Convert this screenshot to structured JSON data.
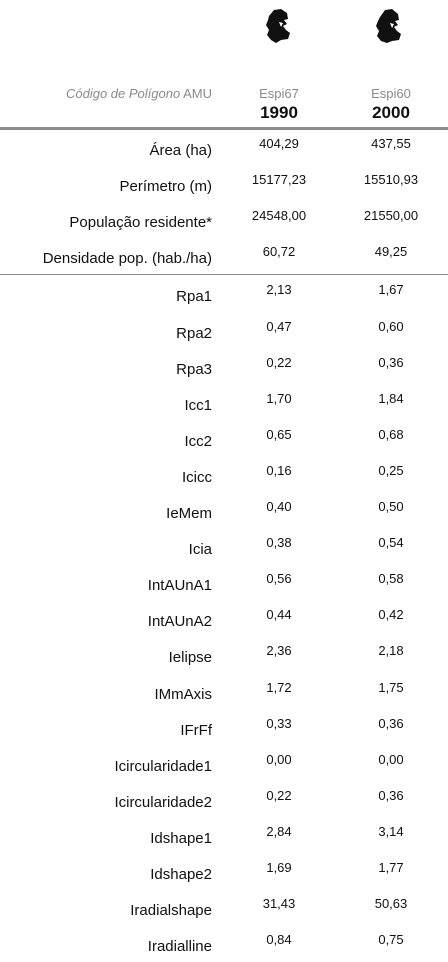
{
  "header": {
    "code_label_italic": "Código de Polígono",
    "code_label_plain": "AMU",
    "columns": [
      {
        "code": "Espi67",
        "year": "1990",
        "shape_icon": "parish-shape-icon"
      },
      {
        "code": "Espi60",
        "year": "2000",
        "shape_icon": "parish-shape-icon"
      }
    ]
  },
  "rows": [
    {
      "label": "Área (ha)",
      "v1": "404,29",
      "v2": "437,55"
    },
    {
      "label": "Perímetro (m)",
      "v1": "15177,23",
      "v2": "15510,93"
    },
    {
      "label": "População residente*",
      "v1": "24548,00",
      "v2": "21550,00"
    },
    {
      "label": "Densidade pop. (hab./ha)",
      "v1": "60,72",
      "v2": "49,25"
    },
    {
      "label": "Rpa1",
      "v1": "2,13",
      "v2": "1,67"
    },
    {
      "label": "Rpa2",
      "v1": "0,47",
      "v2": "0,60"
    },
    {
      "label": "Rpa3",
      "v1": "0,22",
      "v2": "0,36"
    },
    {
      "label": "Icc1",
      "v1": "1,70",
      "v2": "1,84"
    },
    {
      "label": "Icc2",
      "v1": "0,65",
      "v2": "0,68"
    },
    {
      "label": "Icicc",
      "v1": "0,16",
      "v2": "0,25"
    },
    {
      "label": "IeMem",
      "v1": "0,40",
      "v2": "0,50"
    },
    {
      "label": "Icia",
      "v1": "0,38",
      "v2": "0,54"
    },
    {
      "label": "IntAUnA1",
      "v1": "0,56",
      "v2": "0,58"
    },
    {
      "label": "IntAUnA2",
      "v1": "0,44",
      "v2": "0,42"
    },
    {
      "label": "Ielipse",
      "v1": "2,36",
      "v2": "2,18"
    },
    {
      "label": "IMmAxis",
      "v1": "1,72",
      "v2": "1,75"
    },
    {
      "label": "IFrFf",
      "v1": "0,33",
      "v2": "0,36"
    },
    {
      "label": "Icircularidade1",
      "v1": "0,00",
      "v2": "0,00"
    },
    {
      "label": "Icircularidade2",
      "v1": "0,22",
      "v2": "0,36"
    },
    {
      "label": "Idshape1",
      "v1": "2,84",
      "v2": "3,14"
    },
    {
      "label": "Idshape2",
      "v1": "1,69",
      "v2": "1,77"
    },
    {
      "label": "Iradialshape",
      "v1": "31,43",
      "v2": "50,63"
    },
    {
      "label": "Iradialline",
      "v1": "0,84",
      "v2": "0,75"
    }
  ]
}
